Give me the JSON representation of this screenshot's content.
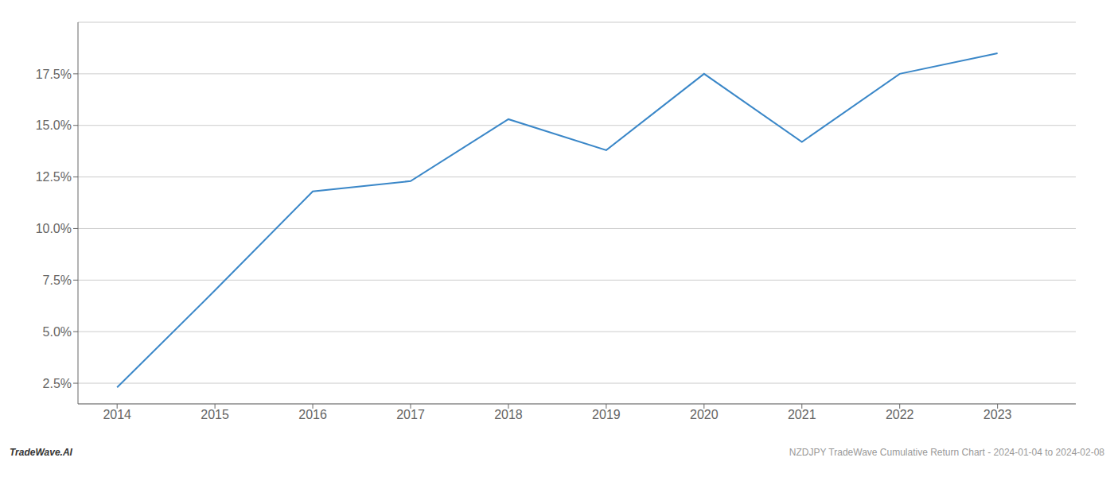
{
  "chart_data": {
    "type": "line",
    "x": [
      2014,
      2015,
      2016,
      2017,
      2018,
      2019,
      2020,
      2021,
      2022,
      2023
    ],
    "values": [
      2.3,
      7.0,
      11.8,
      12.3,
      15.3,
      13.8,
      17.5,
      14.2,
      17.5,
      18.5
    ],
    "color": "#3a87c8",
    "xlim": [
      2013.6,
      2023.8
    ],
    "xticks": [
      2014,
      2015,
      2016,
      2017,
      2018,
      2019,
      2020,
      2021,
      2022,
      2023
    ],
    "ylim": [
      1.5,
      20.0
    ],
    "yticks": [
      {
        "value": 2.5,
        "label": "2.5%"
      },
      {
        "value": 5.0,
        "label": "5.0%"
      },
      {
        "value": 7.5,
        "label": "7.5%"
      },
      {
        "value": 10.0,
        "label": "10.0%"
      },
      {
        "value": 12.5,
        "label": "12.5%"
      },
      {
        "value": 15.0,
        "label": "15.0%"
      },
      {
        "value": 17.5,
        "label": "17.5%"
      }
    ],
    "grid": "y",
    "annotations": [
      "TradeWave.AI",
      "NZDJPY TradeWave Cumulative Return Chart - 2024-01-04 to 2024-02-08"
    ]
  }
}
